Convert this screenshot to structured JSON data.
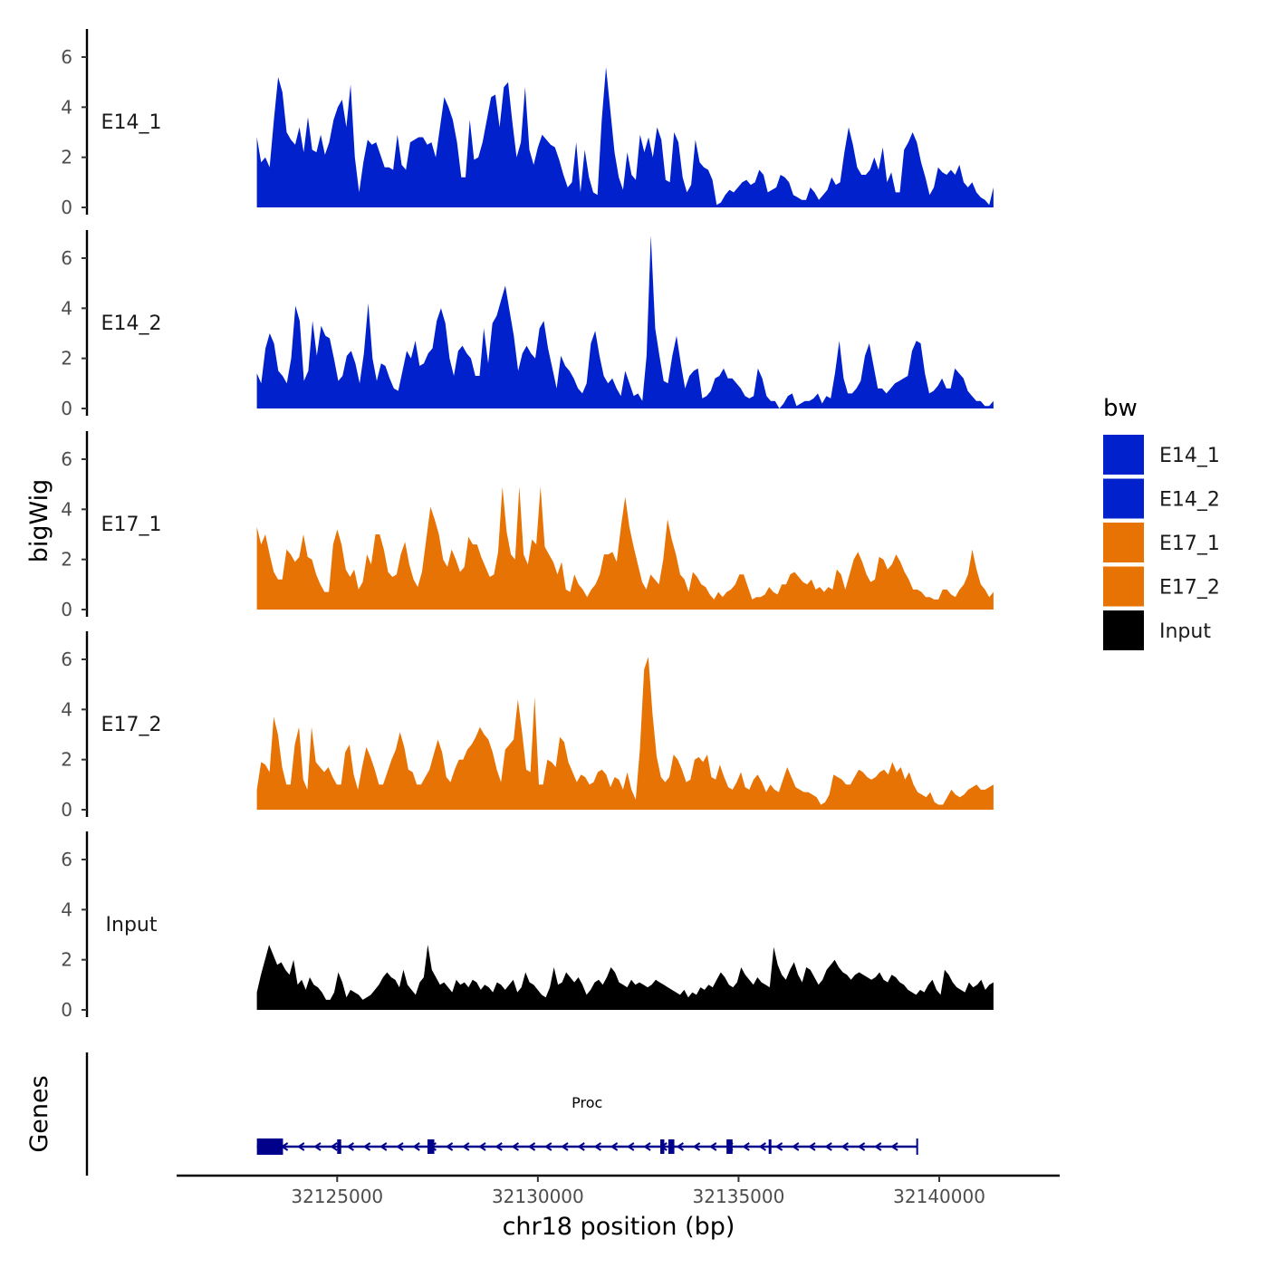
{
  "chart_data": {
    "type": "area",
    "title": "",
    "xlabel": "chr18 position (bp)",
    "ylabel": "bigWig",
    "xlim": [
      32121000,
      32143000
    ],
    "ylim": [
      0,
      7.2
    ],
    "yticks": [
      0,
      2,
      4,
      6
    ],
    "xticks": [
      32125000,
      32130000,
      32135000,
      32140000
    ],
    "xtick_labels": [
      "32125000",
      "32130000",
      "32135000",
      "32140000"
    ],
    "legend_title": "bw",
    "legend_position": "right",
    "grid": false,
    "series": [
      {
        "name": "E14_1",
        "label": "E14_1",
        "color": "#0121CC",
        "x_start": 32123000,
        "x_end": 32141350,
        "values": [
          2.8,
          1.8,
          2.0,
          1.6,
          3.5,
          5.2,
          4.6,
          3.0,
          2.7,
          2.5,
          3.2,
          2.2,
          3.6,
          2.3,
          2.2,
          2.9,
          2.1,
          2.6,
          3.5,
          4.0,
          4.3,
          3.2,
          4.9,
          2.0,
          0.6,
          1.8,
          2.7,
          2.5,
          2.6,
          2.1,
          1.6,
          1.6,
          1.5,
          2.9,
          1.7,
          1.5,
          2.6,
          2.7,
          2.8,
          2.8,
          2.5,
          2.6,
          2.0,
          3.2,
          4.4,
          4.0,
          3.5,
          2.6,
          1.2,
          1.2,
          3.5,
          1.9,
          2.0,
          2.6,
          3.5,
          4.4,
          4.5,
          3.2,
          4.8,
          5.0,
          3.4,
          2.0,
          2.6,
          4.8,
          2.3,
          1.7,
          2.4,
          2.9,
          2.7,
          2.5,
          2.4,
          1.9,
          1.3,
          0.8,
          1.0,
          2.6,
          0.6,
          2.3,
          1.2,
          0.6,
          0.5,
          3.5,
          5.6,
          3.9,
          2.2,
          1.2,
          0.7,
          2.2,
          1.3,
          1.1,
          2.9,
          2.2,
          2.8,
          2.0,
          3.2,
          2.7,
          1.1,
          1.0,
          3.0,
          2.6,
          1.2,
          0.6,
          0.9,
          2.7,
          1.8,
          1.6,
          1.5,
          1.1,
          0.1,
          0.2,
          0.5,
          0.7,
          0.6,
          0.8,
          1.0,
          1.1,
          0.9,
          1.0,
          1.5,
          1.3,
          0.6,
          0.7,
          0.8,
          1.3,
          1.2,
          1.0,
          0.5,
          0.4,
          0.3,
          0.3,
          0.8,
          0.6,
          0.3,
          0.5,
          0.7,
          1.2,
          0.9,
          1.0,
          2.2,
          3.2,
          2.5,
          1.6,
          1.3,
          1.3,
          1.5,
          2.0,
          1.5,
          2.4,
          1.0,
          1.4,
          0.6,
          0.6,
          2.3,
          2.6,
          3.0,
          2.6,
          1.8,
          1.2,
          0.5,
          0.8,
          1.6,
          1.4,
          1.3,
          1.5,
          1.3,
          1.7,
          1.0,
          0.8,
          1.0,
          0.6,
          0.4,
          0.3,
          0.1,
          0.8
        ]
      },
      {
        "name": "E14_2",
        "label": "E14_2",
        "color": "#0121CC",
        "x_start": 32123000,
        "x_end": 32141350,
        "values": [
          1.4,
          1.0,
          2.4,
          3.0,
          2.6,
          1.5,
          1.3,
          1.0,
          2.0,
          4.1,
          3.5,
          1.1,
          1.5,
          3.5,
          2.1,
          3.3,
          2.9,
          2.8,
          2.0,
          1.1,
          1.3,
          2.1,
          2.3,
          1.8,
          1.0,
          2.2,
          4.2,
          2.0,
          1.1,
          1.8,
          1.7,
          1.2,
          0.8,
          0.7,
          1.5,
          2.3,
          2.0,
          2.7,
          1.7,
          1.8,
          2.2,
          2.4,
          3.5,
          4.0,
          3.4,
          2.0,
          1.3,
          2.3,
          2.5,
          2.2,
          2.0,
          1.3,
          1.3,
          3.2,
          1.8,
          3.4,
          3.7,
          4.3,
          4.9,
          3.9,
          2.9,
          1.5,
          2.2,
          2.5,
          2.2,
          2.0,
          3.2,
          3.5,
          2.4,
          1.6,
          0.8,
          2.1,
          1.7,
          1.5,
          1.2,
          0.8,
          0.6,
          1.0,
          2.6,
          3.1,
          2.1,
          1.3,
          1.0,
          1.2,
          0.8,
          0.5,
          1.5,
          1.0,
          0.5,
          0.6,
          0.3,
          2.1,
          6.9,
          3.2,
          2.1,
          1.1,
          1.0,
          2.1,
          2.9,
          1.8,
          0.8,
          1.3,
          1.5,
          1.6,
          0.4,
          0.5,
          0.7,
          1.2,
          1.3,
          1.6,
          1.2,
          1.2,
          1.0,
          0.8,
          0.5,
          0.4,
          0.5,
          1.6,
          1.2,
          0.5,
          0.3,
          0.3,
          0.0,
          0.2,
          0.5,
          0.6,
          0.1,
          0.2,
          0.3,
          0.3,
          0.4,
          0.6,
          0.2,
          0.5,
          0.4,
          1.4,
          2.7,
          1.2,
          0.6,
          0.6,
          0.8,
          1.1,
          2.1,
          2.6,
          1.7,
          0.8,
          0.8,
          0.6,
          0.8,
          1.0,
          1.1,
          1.2,
          1.3,
          2.3,
          2.7,
          2.6,
          1.4,
          0.6,
          0.7,
          0.9,
          1.2,
          0.8,
          0.8,
          1.6,
          1.4,
          1.2,
          0.7,
          0.5,
          0.3,
          0.3,
          0.1,
          0.1,
          0.3
        ]
      },
      {
        "name": "E17_1",
        "label": "E17_1",
        "color": "#E87305",
        "x_start": 32123000,
        "x_end": 32141350,
        "values": [
          3.3,
          2.6,
          3.0,
          2.2,
          1.5,
          1.2,
          1.2,
          2.4,
          2.2,
          1.9,
          2.1,
          3.0,
          2.1,
          2.0,
          1.4,
          1.0,
          0.7,
          0.7,
          2.6,
          3.2,
          2.6,
          1.6,
          1.3,
          1.6,
          0.8,
          1.1,
          2.2,
          1.8,
          3.0,
          3.0,
          2.4,
          1.5,
          1.3,
          1.4,
          2.2,
          2.7,
          1.8,
          1.2,
          0.9,
          1.5,
          2.8,
          4.1,
          3.6,
          3.0,
          2.0,
          1.7,
          2.4,
          2.0,
          1.5,
          1.7,
          2.9,
          2.6,
          2.6,
          2.1,
          1.7,
          1.3,
          1.4,
          2.3,
          4.9,
          3.1,
          2.2,
          2.0,
          4.9,
          2.2,
          1.8,
          2.8,
          2.6,
          4.9,
          2.5,
          2.2,
          1.9,
          1.4,
          1.9,
          0.8,
          0.7,
          1.4,
          1.0,
          0.8,
          0.5,
          0.8,
          1.0,
          1.4,
          2.2,
          2.2,
          2.3,
          1.9,
          3.3,
          4.5,
          3.3,
          2.5,
          1.8,
          1.1,
          0.8,
          1.4,
          1.2,
          1.0,
          2.0,
          3.6,
          2.8,
          2.2,
          1.4,
          1.2,
          0.7,
          1.5,
          1.3,
          1.0,
          0.9,
          0.6,
          0.4,
          0.7,
          0.5,
          0.7,
          0.8,
          1.0,
          1.4,
          1.4,
          0.9,
          0.4,
          0.5,
          0.5,
          0.6,
          0.9,
          0.7,
          0.6,
          1.0,
          1.0,
          1.4,
          1.5,
          1.3,
          1.1,
          1.0,
          1.2,
          0.8,
          0.9,
          0.7,
          0.9,
          0.8,
          1.6,
          1.4,
          0.8,
          1.4,
          2.0,
          2.3,
          1.9,
          1.4,
          1.1,
          1.2,
          2.1,
          2.0,
          1.6,
          1.8,
          2.2,
          1.9,
          1.5,
          1.2,
          0.8,
          0.8,
          0.7,
          0.5,
          0.5,
          0.4,
          0.4,
          0.8,
          0.8,
          0.6,
          0.5,
          0.8,
          1.0,
          1.4,
          2.4,
          1.6,
          1.0,
          0.8,
          0.5,
          0.7
        ]
      },
      {
        "name": "E17_2",
        "label": "E17_2",
        "color": "#E87305",
        "x_start": 32123000,
        "x_end": 32141350,
        "values": [
          0.8,
          1.9,
          1.8,
          1.5,
          3.7,
          3.0,
          1.7,
          1.0,
          1.0,
          2.6,
          3.3,
          1.2,
          0.8,
          3.3,
          1.9,
          1.7,
          1.5,
          1.7,
          1.3,
          1.0,
          1.0,
          2.3,
          2.6,
          1.4,
          0.8,
          1.7,
          2.5,
          2.1,
          1.6,
          1.0,
          1.0,
          1.5,
          2.0,
          2.4,
          3.1,
          2.5,
          1.6,
          1.5,
          1.0,
          1.0,
          1.3,
          1.6,
          2.2,
          2.8,
          2.3,
          1.3,
          1.1,
          1.6,
          2.0,
          2.0,
          2.4,
          2.6,
          2.9,
          3.3,
          3.0,
          2.8,
          2.3,
          1.6,
          1.1,
          2.4,
          2.6,
          2.8,
          4.4,
          3.1,
          1.6,
          1.5,
          4.5,
          1.0,
          1.0,
          2.0,
          1.9,
          1.7,
          2.9,
          2.7,
          1.9,
          1.5,
          1.1,
          1.4,
          1.3,
          1.0,
          1.1,
          1.5,
          1.6,
          1.4,
          0.9,
          1.3,
          1.2,
          0.8,
          1.5,
          0.8,
          0.4,
          2.4,
          5.6,
          6.1,
          3.8,
          2.1,
          1.3,
          1.1,
          1.3,
          2.2,
          2.0,
          1.6,
          1.1,
          1.2,
          2.0,
          2.1,
          1.9,
          2.2,
          1.3,
          1.2,
          1.8,
          1.3,
          0.9,
          0.8,
          1.1,
          1.5,
          0.9,
          0.8,
          1.2,
          1.4,
          1.1,
          0.7,
          1.0,
          0.8,
          0.7,
          1.2,
          1.7,
          1.3,
          0.9,
          0.8,
          0.7,
          0.7,
          0.6,
          0.5,
          0.2,
          0.3,
          0.6,
          1.4,
          1.3,
          1.2,
          1.0,
          1.0,
          1.3,
          1.6,
          1.5,
          1.3,
          1.2,
          1.3,
          1.5,
          1.6,
          1.4,
          1.9,
          1.5,
          1.7,
          1.2,
          1.5,
          1.0,
          0.7,
          0.6,
          0.5,
          0.7,
          0.3,
          0.2,
          0.2,
          0.5,
          0.8,
          0.6,
          0.5,
          0.6,
          0.8,
          0.9,
          1.0,
          0.8,
          0.8,
          0.9,
          1.0
        ]
      },
      {
        "name": "Input",
        "label": "Input",
        "color": "#000000",
        "x_start": 32123000,
        "x_end": 32141350,
        "values": [
          0.7,
          1.4,
          2.0,
          2.6,
          2.2,
          1.8,
          1.9,
          1.6,
          1.4,
          2.0,
          1.0,
          1.2,
          0.8,
          1.3,
          1.0,
          0.9,
          0.7,
          0.4,
          0.4,
          0.7,
          1.5,
          1.1,
          0.5,
          0.8,
          0.7,
          0.6,
          0.4,
          0.5,
          0.6,
          0.8,
          1.0,
          1.3,
          1.5,
          1.3,
          1.2,
          0.9,
          1.6,
          1.0,
          0.8,
          0.6,
          1.1,
          1.3,
          2.6,
          1.6,
          1.3,
          1.0,
          1.1,
          0.9,
          0.7,
          1.2,
          1.0,
          1.1,
          0.9,
          1.2,
          1.1,
          0.8,
          1.0,
          0.9,
          0.7,
          1.1,
          1.0,
          0.8,
          1.0,
          1.2,
          0.7,
          0.9,
          1.5,
          1.1,
          1.0,
          0.8,
          0.6,
          0.5,
          0.9,
          1.7,
          1.0,
          1.1,
          1.5,
          1.3,
          1.1,
          1.3,
          1.0,
          0.6,
          0.8,
          1.1,
          1.2,
          1.0,
          1.3,
          1.7,
          1.5,
          1.1,
          1.0,
          0.9,
          1.2,
          1.0,
          1.1,
          1.0,
          0.9,
          1.0,
          1.2,
          1.1,
          1.0,
          0.9,
          0.8,
          0.7,
          0.6,
          0.8,
          0.5,
          0.7,
          0.6,
          0.9,
          0.8,
          1.0,
          0.9,
          1.2,
          1.5,
          1.3,
          1.0,
          0.9,
          1.1,
          1.7,
          1.4,
          1.2,
          1.0,
          1.3,
          1.1,
          1.0,
          0.9,
          2.5,
          1.8,
          1.4,
          1.2,
          1.6,
          1.9,
          1.4,
          1.1,
          1.7,
          1.6,
          1.3,
          1.0,
          1.2,
          1.6,
          1.8,
          2.0,
          1.7,
          1.5,
          1.4,
          1.2,
          1.4,
          1.5,
          1.4,
          1.3,
          1.2,
          1.3,
          1.5,
          1.2,
          1.1,
          1.4,
          1.3,
          1.1,
          1.0,
          0.8,
          0.7,
          0.6,
          0.8,
          0.7,
          1.0,
          1.2,
          0.8,
          0.6,
          1.6,
          1.4,
          1.1,
          0.9,
          0.8,
          0.7,
          1.1,
          0.9,
          1.0,
          1.2,
          0.8,
          1.0,
          1.1
        ]
      }
    ],
    "gene_track": {
      "label": "Genes",
      "gene_name": "Proc",
      "color": "#00008B",
      "strand": "-",
      "start": 32123000,
      "end": 32139450,
      "exons": [
        [
          32123000,
          32123650
        ],
        [
          32125000,
          32125100
        ],
        [
          32127250,
          32127420
        ],
        [
          32133050,
          32133150
        ],
        [
          32133250,
          32133400
        ],
        [
          32134700,
          32134850
        ],
        [
          32135750,
          32135800
        ]
      ]
    }
  }
}
